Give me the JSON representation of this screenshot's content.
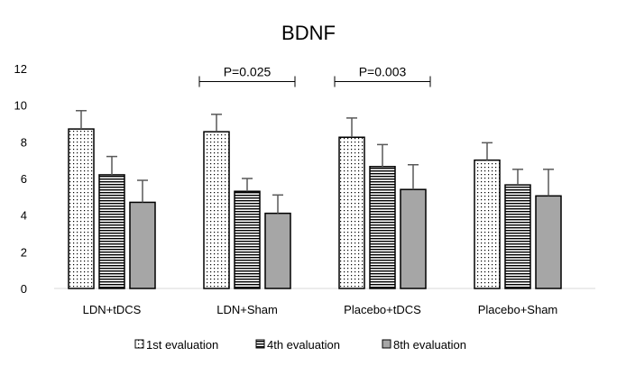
{
  "chart_data": {
    "type": "bar",
    "title": "BDNF",
    "xlabel": "",
    "ylabel": "",
    "ylim": [
      0,
      12
    ],
    "yticks": [
      0,
      2,
      4,
      6,
      8,
      10,
      12
    ],
    "grid": false,
    "legend_position": "bottom",
    "categories": [
      "LDN+tDCS",
      "LDN+Sham",
      "Placebo+tDCS",
      "Placebo+Sham"
    ],
    "series": [
      {
        "name": "1st evaluation",
        "pattern": "dots",
        "values": [
          8.7,
          8.55,
          8.25,
          7.0
        ],
        "errors": [
          1.0,
          0.95,
          1.05,
          0.95
        ]
      },
      {
        "name": "4th evaluation",
        "pattern": "horizontal-lines",
        "values": [
          6.2,
          5.3,
          6.65,
          5.65
        ],
        "errors": [
          1.0,
          0.7,
          1.2,
          0.85
        ]
      },
      {
        "name": "8th evaluation",
        "pattern": "solid-gray",
        "values": [
          4.7,
          4.1,
          5.4,
          5.05
        ],
        "errors": [
          1.2,
          1.0,
          1.35,
          1.45
        ]
      }
    ],
    "annotations": [
      {
        "text": "P=0.025",
        "category": "LDN+Sham",
        "y": 10.6
      },
      {
        "text": "P=0.003",
        "category": "Placebo+tDCS",
        "y": 10.6
      }
    ],
    "colors": {
      "bar_stroke": "#000000",
      "gray_fill": "#a6a6a6",
      "error_bar": "#595959",
      "axis": "#d9d9d9"
    }
  }
}
